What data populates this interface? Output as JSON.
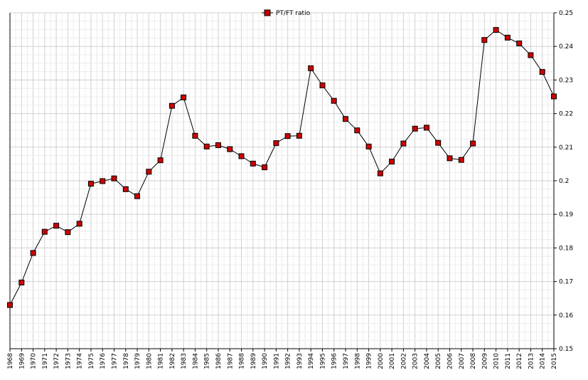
{
  "chart_data": {
    "type": "line",
    "title": "",
    "xlabel": "",
    "ylabel": "",
    "legend": {
      "position": "top-center",
      "entries": [
        "PT/FT ratio"
      ]
    },
    "grid": true,
    "ylim": [
      0.15,
      0.25
    ],
    "y_ticks": [
      "0.15",
      "0.16",
      "0.17",
      "0.18",
      "0.19",
      "0.2",
      "0.21",
      "0.22",
      "0.23",
      "0.24",
      "0.25"
    ],
    "x": [
      "1968",
      "1969",
      "1970",
      "1971",
      "1972",
      "1973",
      "1974",
      "1975",
      "1976",
      "1977",
      "1978",
      "1979",
      "1980",
      "1981",
      "1982",
      "1983",
      "1984",
      "1985",
      "1986",
      "1987",
      "1988",
      "1989",
      "1990",
      "1991",
      "1992",
      "1993",
      "1994",
      "1995",
      "1996",
      "1997",
      "1998",
      "1999",
      "2000",
      "2001",
      "2002",
      "2003",
      "2004",
      "2005",
      "2006",
      "2007",
      "2008",
      "2009",
      "2010",
      "2011",
      "2012",
      "2013",
      "2014",
      "2015"
    ],
    "series": [
      {
        "name": "PT/FT ratio",
        "color": "#cc0000",
        "values": [
          0.163,
          0.1697,
          0.1785,
          0.1848,
          0.1866,
          0.1847,
          0.1872,
          0.1991,
          0.1999,
          0.2007,
          0.1975,
          0.1954,
          0.2027,
          0.2061,
          0.2223,
          0.2248,
          0.2134,
          0.2102,
          0.2106,
          0.2094,
          0.2073,
          0.2051,
          0.204,
          0.2112,
          0.2133,
          0.2134,
          0.2335,
          0.2284,
          0.2238,
          0.2184,
          0.215,
          0.2102,
          0.2022,
          0.2057,
          0.2111,
          0.2155,
          0.2158,
          0.2113,
          0.2067,
          0.2062,
          0.2111,
          0.2419,
          0.2449,
          0.2426,
          0.2409,
          0.2374,
          0.2324,
          0.2251
        ]
      }
    ]
  }
}
